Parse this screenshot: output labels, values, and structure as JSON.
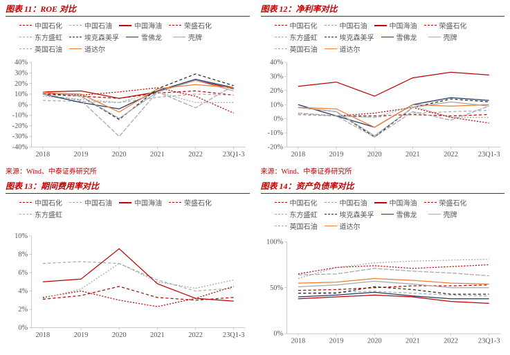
{
  "source_text": "来源：Wind、中泰证券研究所",
  "colors": {
    "red_main": "#c00000",
    "grey": "#a6a6a6",
    "navy": "#1f3864",
    "orange": "#ed7d31",
    "axis": "#999999"
  },
  "x_categories": [
    "2018",
    "2019",
    "2020",
    "2021",
    "2022",
    "23Q1-3"
  ],
  "panels": [
    {
      "title": "图表 11：ROE 对比",
      "ylim": [
        -40,
        40
      ],
      "ytick_step": 10,
      "y_suffix": "%",
      "series": [
        {
          "name": "中国石化",
          "color": "#c00000",
          "dash": "4 3",
          "w": 1.2,
          "data": [
            10,
            8,
            6,
            11,
            13,
            9
          ]
        },
        {
          "name": "中国石油",
          "color": "#a6a6a6",
          "dash": "4 3",
          "w": 1.2,
          "data": [
            4,
            3,
            2,
            7,
            10,
            9
          ]
        },
        {
          "name": "中国海油",
          "color": "#c00000",
          "dash": "",
          "w": 2.4,
          "data": [
            12,
            13,
            6,
            12,
            23,
            15
          ]
        },
        {
          "name": "荣盛石化",
          "color": "#c00000",
          "dash": "2 2",
          "w": 1.2,
          "data": [
            11,
            9,
            12,
            16,
            8,
            -8
          ]
        },
        {
          "name": "东方盛虹",
          "color": "#a6a6a6",
          "dash": "2 2",
          "w": 1.2,
          "data": [
            8,
            5,
            2,
            12,
            2,
            2
          ]
        },
        {
          "name": "埃克森美孚",
          "color": "#262626",
          "dash": "4 3",
          "w": 1.2,
          "data": [
            11,
            8,
            -14,
            15,
            29,
            18
          ]
        },
        {
          "name": "雪佛龙",
          "color": "#1f3864",
          "dash": "",
          "w": 1.4,
          "data": [
            10,
            2,
            -4,
            13,
            24,
            16
          ]
        },
        {
          "name": "壳牌",
          "color": "#a6a6a6",
          "dash": "",
          "w": 1.4,
          "data": [
            12,
            8,
            -13,
            12,
            23,
            13
          ]
        },
        {
          "name": "英国石油",
          "color": "#a6a6a6",
          "dash": "6 2",
          "w": 1.2,
          "data": [
            10,
            4,
            -30,
            12,
            -3,
            18
          ]
        },
        {
          "name": "道达尔",
          "color": "#ed7d31",
          "dash": "",
          "w": 1.4,
          "data": [
            11,
            10,
            -7,
            15,
            19,
            16
          ]
        }
      ]
    },
    {
      "title": "图表 12：净利率对比",
      "ylim": [
        -20,
        40
      ],
      "ytick_step": 10,
      "y_suffix": "%",
      "series": [
        {
          "name": "中国石化",
          "color": "#c00000",
          "dash": "4 3",
          "w": 1.2,
          "data": [
            3,
            2,
            2,
            3,
            2,
            3
          ]
        },
        {
          "name": "中国石油",
          "color": "#a6a6a6",
          "dash": "4 3",
          "w": 1.2,
          "data": [
            3,
            2,
            1,
            4,
            5,
            6
          ]
        },
        {
          "name": "中国海油",
          "color": "#c00000",
          "dash": "",
          "w": 2.4,
          "data": [
            23,
            26,
            16,
            29,
            33,
            31
          ]
        },
        {
          "name": "荣盛石化",
          "color": "#c00000",
          "dash": "2 2",
          "w": 1.2,
          "data": [
            4,
            2,
            4,
            8,
            1,
            -3
          ]
        },
        {
          "name": "东方盛虹",
          "color": "#a6a6a6",
          "dash": "2 2",
          "w": 1.2,
          "data": [
            4,
            2,
            1,
            9,
            1,
            1
          ]
        },
        {
          "name": "埃克森美孚",
          "color": "#262626",
          "dash": "4 3",
          "w": 1.2,
          "data": [
            8,
            5,
            -13,
            8,
            14,
            12
          ]
        },
        {
          "name": "雪佛龙",
          "color": "#1f3864",
          "dash": "",
          "w": 1.4,
          "data": [
            10,
            2,
            -6,
            10,
            15,
            13
          ]
        },
        {
          "name": "壳牌",
          "color": "#a6a6a6",
          "dash": "",
          "w": 1.4,
          "data": [
            8,
            5,
            -12,
            8,
            12,
            9
          ]
        },
        {
          "name": "英国石油",
          "color": "#a6a6a6",
          "dash": "6 2",
          "w": 1.2,
          "data": [
            4,
            2,
            -13,
            5,
            -1,
            9
          ]
        },
        {
          "name": "道达尔",
          "color": "#ed7d31",
          "dash": "",
          "w": 1.4,
          "data": [
            8,
            7,
            -6,
            10,
            9,
            10
          ]
        }
      ]
    },
    {
      "title": "图表 13：期间费用率对比",
      "ylim": [
        0,
        10
      ],
      "ytick_step": 2,
      "y_suffix": "%",
      "series": [
        {
          "name": "中国石化",
          "color": "#c00000",
          "dash": "4 3",
          "w": 1.2,
          "data": [
            3.1,
            3.5,
            4.5,
            3.3,
            3.0,
            3.3
          ]
        },
        {
          "name": "中国石油",
          "color": "#a6a6a6",
          "dash": "4 3",
          "w": 1.2,
          "data": [
            7.0,
            7.2,
            7.0,
            5.2,
            4.0,
            4.3
          ]
        },
        {
          "name": "中国海油",
          "color": "#c00000",
          "dash": "",
          "w": 2.4,
          "data": [
            5.0,
            5.3,
            8.6,
            4.8,
            3.2,
            2.9
          ]
        },
        {
          "name": "荣盛石化",
          "color": "#c00000",
          "dash": "2 2",
          "w": 1.2,
          "data": [
            3.3,
            4.0,
            3.0,
            2.3,
            3.2,
            4.5
          ]
        },
        {
          "name": "东方盛虹",
          "color": "#a6a6a6",
          "dash": "2 2",
          "w": 1.2,
          "data": [
            3.2,
            4.2,
            7.0,
            5.0,
            4.3,
            5.2
          ]
        }
      ]
    },
    {
      "title": "图表 14：资产负债率对比",
      "ylim": [
        0,
        100
      ],
      "ytick_step": 50,
      "y_suffix": "%",
      "series": [
        {
          "name": "中国石化",
          "color": "#c00000",
          "dash": "4 3",
          "w": 1.2,
          "data": [
            47,
            48,
            50,
            52,
            52,
            53
          ]
        },
        {
          "name": "中国石油",
          "color": "#a6a6a6",
          "dash": "4 3",
          "w": 1.2,
          "data": [
            44,
            45,
            46,
            44,
            42,
            41
          ]
        },
        {
          "name": "中国海油",
          "color": "#c00000",
          "dash": "",
          "w": 2.4,
          "data": [
            38,
            40,
            42,
            40,
            35,
            33
          ]
        },
        {
          "name": "荣盛石化",
          "color": "#c00000",
          "dash": "2 2",
          "w": 1.2,
          "data": [
            65,
            72,
            74,
            71,
            73,
            75
          ]
        },
        {
          "name": "东方盛虹",
          "color": "#a6a6a6",
          "dash": "2 2",
          "w": 1.2,
          "data": [
            60,
            72,
            77,
            79,
            80,
            81
          ]
        },
        {
          "name": "埃克森美孚",
          "color": "#262626",
          "dash": "4 3",
          "w": 1.2,
          "data": [
            44,
            44,
            51,
            48,
            43,
            43
          ]
        },
        {
          "name": "雪佛龙",
          "color": "#1f3864",
          "dash": "",
          "w": 1.4,
          "data": [
            40,
            42,
            45,
            41,
            38,
            38
          ]
        },
        {
          "name": "壳牌",
          "color": "#a6a6a6",
          "dash": "",
          "w": 1.4,
          "data": [
            51,
            53,
            57,
            54,
            50,
            50
          ]
        },
        {
          "name": "英国石油",
          "color": "#a6a6a6",
          "dash": "6 2",
          "w": 1.2,
          "data": [
            64,
            65,
            71,
            68,
            66,
            63
          ]
        },
        {
          "name": "道达尔",
          "color": "#ed7d31",
          "dash": "",
          "w": 1.4,
          "data": [
            55,
            56,
            60,
            58,
            55,
            54
          ]
        }
      ]
    }
  ]
}
